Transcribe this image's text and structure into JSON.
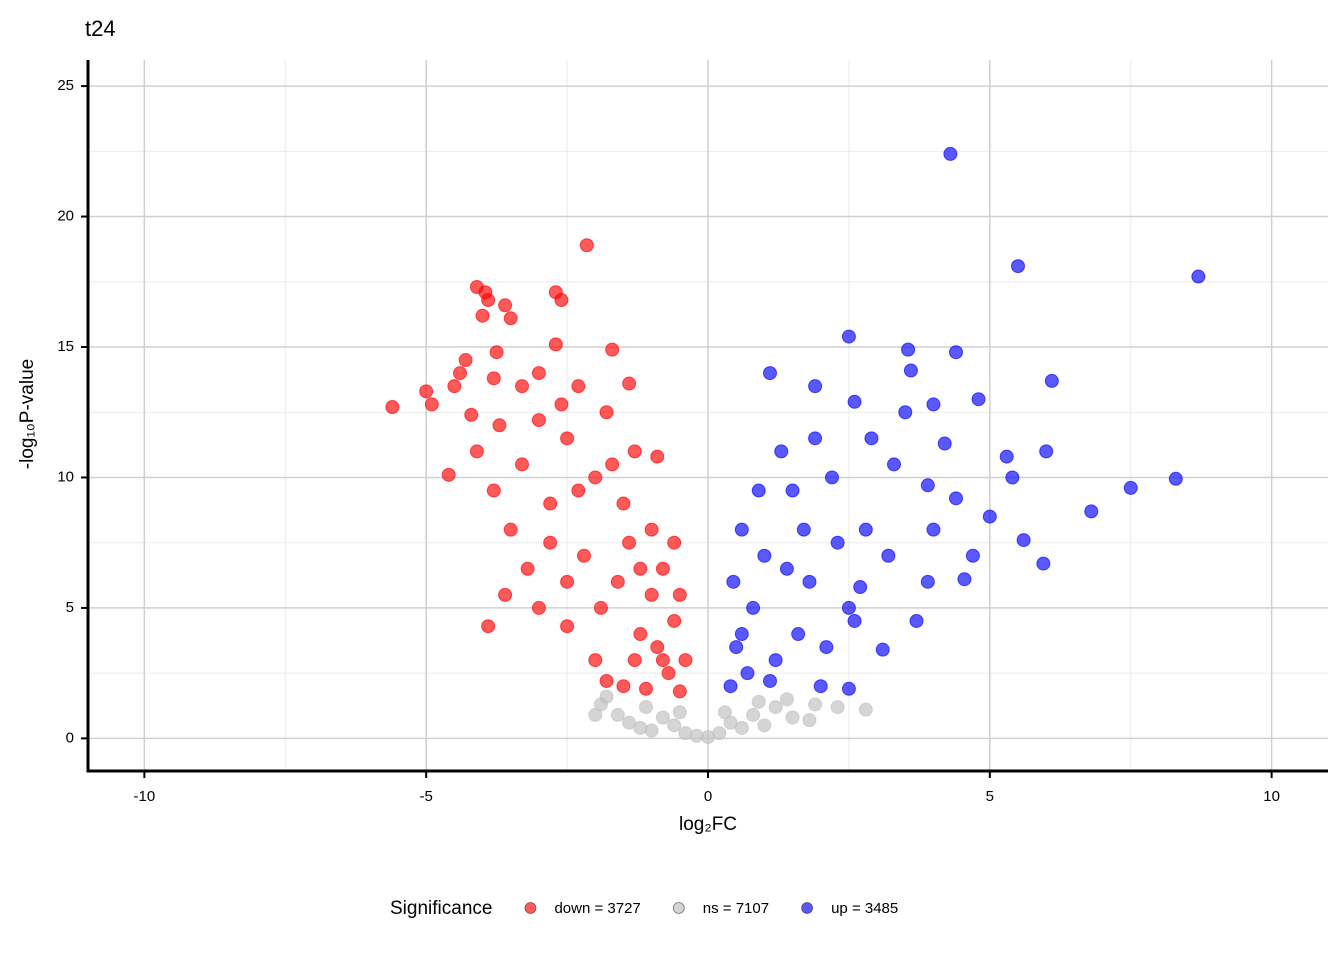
{
  "chart_data": {
    "type": "scatter",
    "title": "t24",
    "xlabel": "log₂FC",
    "ylabel": "-log₁₀P-value",
    "xlim": [
      -11,
      11
    ],
    "ylim": [
      -1.25,
      26
    ],
    "xticks": [
      -10,
      -5,
      0,
      5,
      10
    ],
    "yticks": [
      0,
      5,
      10,
      15,
      20,
      25
    ],
    "xminor": [
      -7.5,
      -2.5,
      2.5,
      7.5
    ],
    "yminor": [
      2.5,
      7.5,
      12.5,
      17.5,
      22.5
    ],
    "grid": true,
    "legend_title": "Significance",
    "legend": "bottom",
    "series": [
      {
        "name": "down = 3727",
        "color": "#ff0000",
        "x": [
          -5.6,
          -5.0,
          -4.9,
          -4.6,
          -4.5,
          -4.4,
          -4.3,
          -4.2,
          -4.1,
          -4.0,
          -3.95,
          -3.9,
          -3.8,
          -3.75,
          -3.7,
          -3.6,
          -3.5,
          -3.9,
          -3.6,
          -3.2,
          -3.0,
          -2.7,
          -2.6,
          -2.7,
          -2.5,
          -2.15,
          -1.7,
          -3.0,
          -3.3,
          -2.3,
          -1.4,
          -4.1,
          -3.8,
          -3.5,
          -3.3,
          -3.0,
          -2.8,
          -2.5,
          -2.2,
          -2.0,
          -1.8,
          -1.6,
          -1.5,
          -1.3,
          -1.2,
          -1.0,
          -0.9,
          -0.8,
          -0.7,
          -0.6,
          -0.5,
          -2.0,
          -1.8,
          -1.5,
          -1.1,
          -2.5,
          -2.8,
          -1.9,
          -1.4,
          -1.0,
          -0.8,
          -1.3,
          -2.3,
          -1.7,
          -0.9,
          -0.6,
          -0.5,
          -0.4,
          -1.2,
          -2.6
        ],
        "values": [
          12.7,
          13.3,
          12.8,
          10.1,
          13.5,
          14.0,
          14.5,
          12.4,
          17.3,
          16.2,
          17.1,
          16.8,
          13.8,
          14.8,
          12.0,
          16.6,
          16.1,
          4.3,
          5.5,
          6.5,
          5.0,
          17.1,
          16.8,
          15.1,
          4.3,
          18.9,
          14.9,
          14.0,
          13.5,
          13.5,
          13.6,
          11.0,
          9.5,
          8.0,
          10.5,
          12.2,
          9.0,
          11.5,
          7.0,
          10.0,
          12.5,
          6.0,
          9.0,
          11.0,
          4.0,
          8.0,
          3.5,
          6.5,
          2.5,
          4.5,
          1.8,
          3.0,
          2.2,
          2.0,
          1.9,
          6.0,
          7.5,
          5.0,
          7.5,
          5.5,
          3.0,
          3.0,
          9.5,
          10.5,
          10.8,
          7.5,
          5.5,
          3.0,
          6.5,
          12.8
        ]
      },
      {
        "name": "ns = 7107",
        "color": "#bebebe",
        "x": [
          -1.9,
          -1.6,
          -1.4,
          -1.2,
          -1.0,
          -0.8,
          -0.6,
          -0.4,
          -0.2,
          0,
          0.2,
          0.4,
          0.6,
          0.8,
          1.0,
          1.2,
          1.5,
          1.8,
          2.3,
          2.8,
          -1.8,
          -1.1,
          0.3,
          0.9,
          1.4,
          -0.5,
          -2.0,
          1.9
        ],
        "values": [
          1.3,
          0.9,
          0.6,
          0.4,
          0.3,
          0.8,
          0.5,
          0.2,
          0.1,
          0.05,
          0.2,
          0.6,
          0.4,
          0.9,
          0.5,
          1.2,
          0.8,
          0.7,
          1.2,
          1.1,
          1.6,
          1.2,
          1.0,
          1.4,
          1.5,
          1.0,
          0.9,
          1.3
        ]
      },
      {
        "name": "up = 3485",
        "color": "#0000ff",
        "x": [
          4.3,
          5.5,
          8.7,
          2.5,
          3.55,
          4.4,
          3.6,
          6.1,
          1.1,
          1.9,
          4.8,
          2.6,
          4.0,
          3.5,
          6.0,
          4.2,
          7.5,
          8.3,
          6.8,
          5.95,
          5.6,
          4.55,
          5.0,
          4.4,
          3.9,
          2.5,
          2.6,
          2.0,
          2.5,
          3.1,
          3.7,
          3.2,
          2.8,
          2.2,
          1.8,
          1.5,
          1.2,
          1.0,
          0.8,
          0.6,
          0.5,
          0.4,
          0.45,
          1.3,
          1.9,
          2.9,
          3.3,
          4.0,
          4.7,
          5.3,
          5.4,
          1.6,
          1.1,
          0.7,
          1.4,
          2.3,
          0.9,
          1.7,
          2.7,
          0.6,
          3.9,
          2.1
        ],
        "values": [
          22.4,
          18.1,
          17.7,
          15.4,
          14.9,
          14.8,
          14.1,
          13.7,
          14.0,
          13.5,
          13.0,
          12.9,
          12.8,
          12.5,
          11.0,
          11.3,
          9.6,
          9.95,
          8.7,
          6.7,
          7.6,
          6.1,
          8.5,
          9.2,
          9.7,
          5.0,
          4.5,
          2.0,
          1.9,
          3.4,
          4.5,
          7.0,
          8.0,
          10.0,
          6.0,
          9.5,
          3.0,
          7.0,
          5.0,
          8.0,
          3.5,
          2.0,
          6.0,
          11.0,
          11.5,
          11.5,
          10.5,
          8.0,
          7.0,
          10.8,
          10.0,
          4.0,
          2.2,
          2.5,
          6.5,
          7.5,
          9.5,
          8.0,
          5.8,
          4.0,
          6.0,
          3.5
        ]
      }
    ]
  }
}
